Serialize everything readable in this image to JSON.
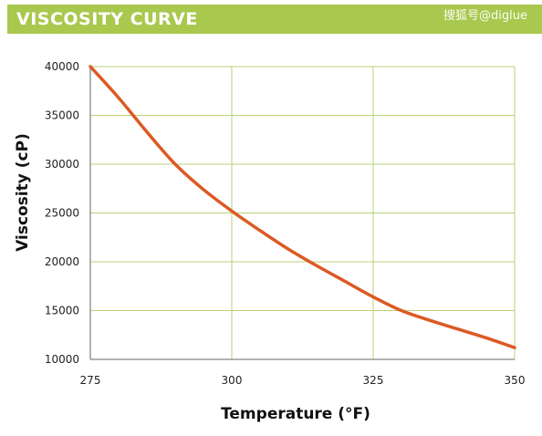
{
  "header": {
    "title": "VISCOSITY CURVE",
    "watermark": "搜狐号@diglue",
    "banner_color": "#a9c84e"
  },
  "chart_data": {
    "type": "line",
    "title": "VISCOSITY CURVE",
    "xlabel": "Temperature (°F)",
    "ylabel": "Viscosity (cP)",
    "xlim": [
      275,
      350
    ],
    "ylim": [
      10000,
      40000
    ],
    "x_ticks": [
      275,
      300,
      325,
      350
    ],
    "y_ticks": [
      10000,
      15000,
      20000,
      25000,
      30000,
      35000,
      40000
    ],
    "grid": true,
    "legend": "none",
    "colors": {
      "line": "#dc5a23",
      "grid": "#b8d27a",
      "axis": "#666666"
    },
    "series": [
      {
        "x": [
          275,
          280,
          285,
          290,
          295,
          300,
          305,
          310,
          315,
          320,
          325,
          330,
          335,
          340,
          345,
          350
        ],
        "values": [
          40000,
          36800,
          33300,
          30000,
          27400,
          25200,
          23200,
          21300,
          19600,
          18000,
          16400,
          15000,
          14000,
          13100,
          12200,
          11200
        ]
      }
    ]
  }
}
